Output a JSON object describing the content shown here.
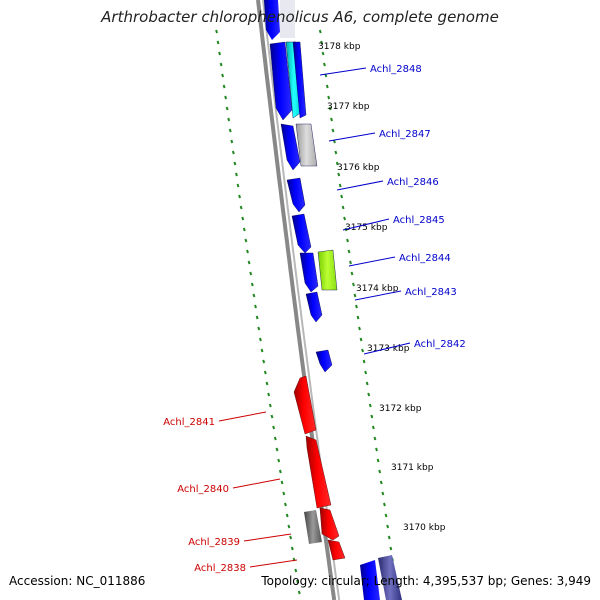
{
  "title": "Arthrobacter chlorophenolicus A6, complete genome",
  "footer": {
    "accession": "Accession: NC_011886",
    "summary": "Topology: circular; Length: 4,395,537 bp; Genes: 3,949"
  },
  "colors": {
    "forward_gene": "#0000ee",
    "reverse_gene": "#ee0000",
    "backbone": "#888888",
    "gc_ticks": "#228822",
    "label_forward": "#0000cc",
    "label_reverse": "#cc0000"
  },
  "ticks": [
    {
      "label": "3178 kbp"
    },
    {
      "label": "3177 kbp"
    },
    {
      "label": "3176 kbp"
    },
    {
      "label": "3175 kbp"
    },
    {
      "label": "3174 kbp"
    },
    {
      "label": "3173 kbp"
    },
    {
      "label": "3172 kbp"
    },
    {
      "label": "3171 kbp"
    },
    {
      "label": "3170 kbp"
    }
  ],
  "genes": [
    {
      "label": "Achl_2848",
      "strand": "forward"
    },
    {
      "label": "Achl_2847",
      "strand": "forward"
    },
    {
      "label": "Achl_2846",
      "strand": "forward"
    },
    {
      "label": "Achl_2845",
      "strand": "forward"
    },
    {
      "label": "Achl_2844",
      "strand": "forward"
    },
    {
      "label": "Achl_2843",
      "strand": "forward"
    },
    {
      "label": "Achl_2842",
      "strand": "forward"
    },
    {
      "label": "Achl_2841",
      "strand": "reverse"
    },
    {
      "label": "Achl_2840",
      "strand": "reverse"
    },
    {
      "label": "Achl_2839",
      "strand": "reverse"
    },
    {
      "label": "Achl_2838",
      "strand": "reverse"
    }
  ]
}
